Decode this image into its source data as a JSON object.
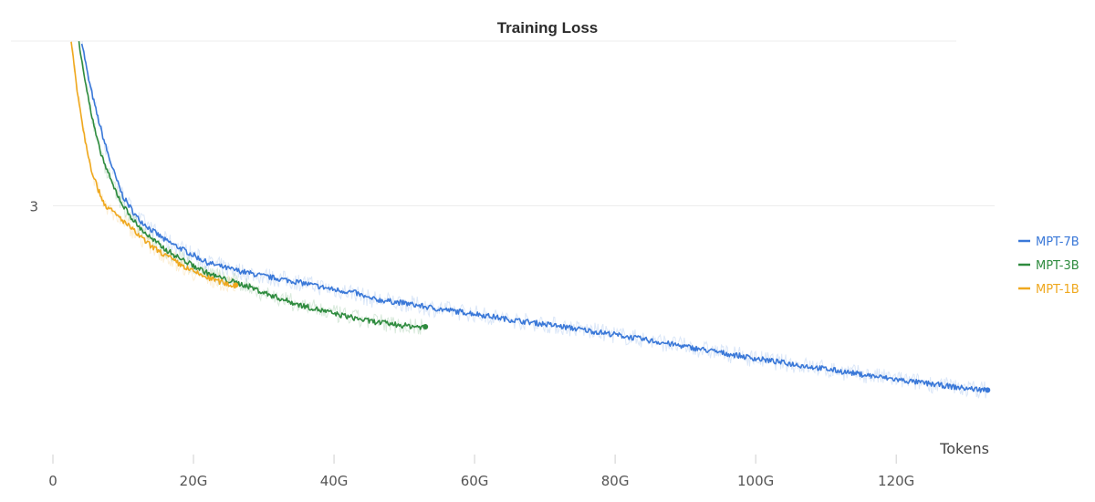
{
  "chart_data": {
    "type": "line",
    "title": "Training Loss",
    "xlabel": "Tokens",
    "ylabel": "",
    "xlim": [
      0,
      134
    ],
    "ylim": [
      2.2,
      3.55
    ],
    "x_unit": "G",
    "x_ticks": [
      {
        "value": 0,
        "label": "0"
      },
      {
        "value": 20,
        "label": "20G"
      },
      {
        "value": 40,
        "label": "40G"
      },
      {
        "value": 60,
        "label": "60G"
      },
      {
        "value": 80,
        "label": "80G"
      },
      {
        "value": 100,
        "label": "100G"
      },
      {
        "value": 120,
        "label": "120G"
      }
    ],
    "y_ticks": [
      {
        "value": 3,
        "label": "3"
      }
    ],
    "grid": true,
    "legend_position": "right",
    "series": [
      {
        "name": "MPT-7B",
        "color": "#3a78d8",
        "x": [
          4.1,
          5,
          6,
          7,
          8,
          9,
          10,
          12,
          14,
          16,
          18,
          20,
          22,
          25,
          30,
          35,
          40,
          43,
          45,
          50,
          55,
          60,
          65,
          70,
          80,
          90,
          100,
          110,
          120,
          130,
          133
        ],
        "y": [
          3.55,
          3.43,
          3.33,
          3.24,
          3.16,
          3.09,
          3.03,
          2.96,
          2.92,
          2.885,
          2.86,
          2.835,
          2.81,
          2.79,
          2.765,
          2.745,
          2.72,
          2.71,
          2.69,
          2.675,
          2.655,
          2.64,
          2.62,
          2.605,
          2.57,
          2.53,
          2.49,
          2.455,
          2.42,
          2.39,
          2.385
        ]
      },
      {
        "name": "MPT-3B",
        "color": "#2e8b3e",
        "x": [
          3.7,
          4.5,
          5.5,
          6.5,
          7.5,
          8.5,
          10,
          12,
          14,
          16,
          18,
          20,
          22,
          25,
          28,
          30,
          33,
          35,
          40,
          45,
          50,
          53
        ],
        "y": [
          3.55,
          3.43,
          3.3,
          3.2,
          3.13,
          3.07,
          3.0,
          2.935,
          2.89,
          2.855,
          2.825,
          2.8,
          2.775,
          2.75,
          2.73,
          2.71,
          2.685,
          2.67,
          2.64,
          2.615,
          2.6,
          2.595
        ]
      },
      {
        "name": "MPT-1B",
        "color": "#efa81e",
        "x": [
          2.6,
          3.5,
          4.5,
          5.5,
          6.5,
          7.5,
          9,
          10,
          12,
          14,
          16,
          18,
          20,
          22,
          24,
          26
        ],
        "y": [
          3.55,
          3.38,
          3.23,
          3.12,
          3.05,
          3.0,
          2.97,
          2.95,
          2.905,
          2.865,
          2.835,
          2.805,
          2.78,
          2.76,
          2.745,
          2.73
        ]
      }
    ]
  }
}
